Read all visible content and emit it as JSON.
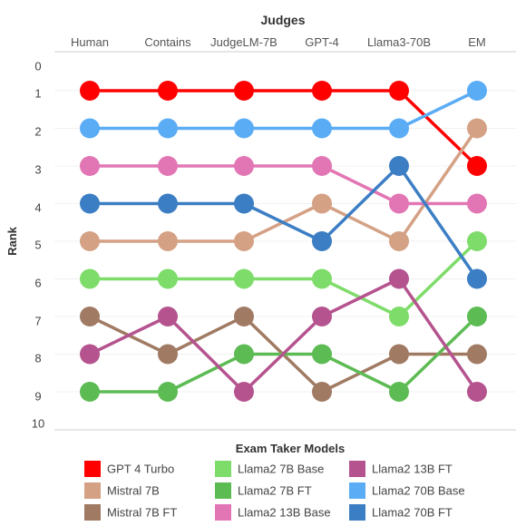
{
  "chart_data": {
    "type": "line",
    "title": "Judges",
    "ylabel": "Rank",
    "ylim": [
      0,
      10
    ],
    "y_ticks": [
      "0",
      "1",
      "2",
      "3",
      "4",
      "5",
      "6",
      "7",
      "8",
      "9",
      "10"
    ],
    "y_inverted": true,
    "grid": true,
    "categories": [
      "Human",
      "Contains",
      "JudgeLM-7B",
      "GPT-4",
      "Llama3-70B",
      "EM"
    ],
    "legend_title": "Exam Taker Models",
    "legend_position": "bottom",
    "series": [
      {
        "name": "GPT 4 Turbo",
        "color": "#ff0000",
        "values": [
          1,
          1,
          1,
          1,
          1,
          3
        ]
      },
      {
        "name": "Mistral 7B",
        "color": "#d4a185",
        "values": [
          5,
          5,
          5,
          4,
          5,
          2
        ]
      },
      {
        "name": "Mistral 7B FT",
        "color": "#a07a63",
        "values": [
          7,
          8,
          7,
          9,
          8,
          8
        ]
      },
      {
        "name": "Llama2 7B Base",
        "color": "#7edc6a",
        "values": [
          6,
          6,
          6,
          6,
          7,
          5
        ]
      },
      {
        "name": "Llama2 7B FT",
        "color": "#5dbb53",
        "values": [
          9,
          9,
          8,
          8,
          9,
          7
        ]
      },
      {
        "name": "Llama2 13B Base",
        "color": "#e276b4",
        "values": [
          3,
          3,
          3,
          3,
          4,
          4
        ]
      },
      {
        "name": "Llama2 13B FT",
        "color": "#b5538f",
        "values": [
          8,
          7,
          9,
          7,
          6,
          9
        ]
      },
      {
        "name": "Llama2 70B Base",
        "color": "#5aacf5",
        "values": [
          2,
          2,
          2,
          2,
          2,
          1
        ]
      },
      {
        "name": "Llama2 70B FT",
        "color": "#3c7ec4",
        "values": [
          4,
          4,
          4,
          5,
          3,
          6
        ]
      }
    ]
  }
}
